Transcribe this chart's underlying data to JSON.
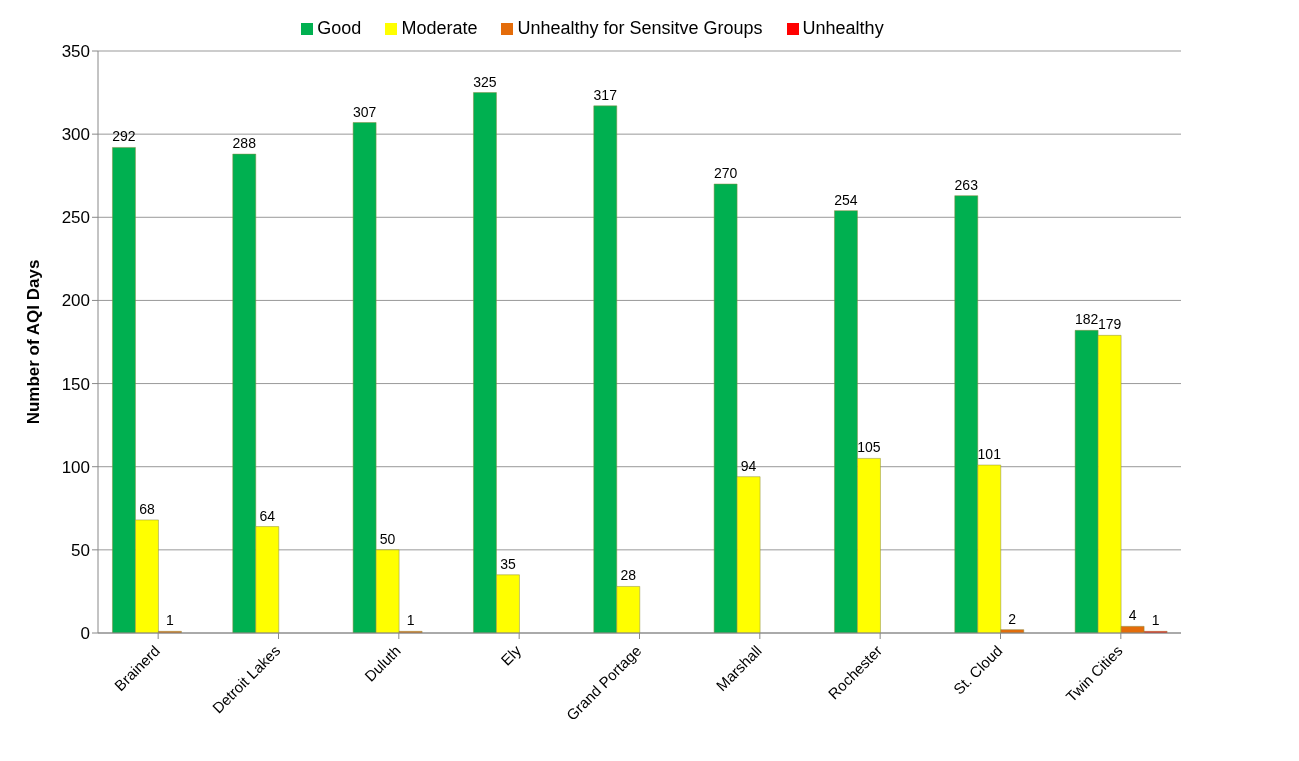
{
  "chart_data": {
    "type": "bar",
    "ylabel": "Number of AQI Days",
    "categories": [
      "Brainerd",
      "Detroit Lakes",
      "Duluth",
      "Ely",
      "Grand Portage",
      "Marshall",
      "Rochester",
      "St. Cloud",
      "Twin Cities"
    ],
    "series": [
      {
        "name": "Good",
        "color": "#00b050",
        "values": [
          292,
          288,
          307,
          325,
          317,
          270,
          254,
          263,
          182
        ],
        "value_labels": [
          "292",
          "288",
          "307",
          "325",
          "317",
          "270",
          "254",
          "263",
          "182"
        ]
      },
      {
        "name": "Moderate",
        "color": "#ffff00",
        "values": [
          68,
          64,
          50,
          35,
          28,
          94,
          105,
          101,
          179
        ],
        "value_labels": [
          "68",
          "64",
          "50",
          "35",
          "28",
          "94",
          "105",
          "101",
          "179"
        ]
      },
      {
        "name": "Unhealthy for Sensitve Groups",
        "color": "#e46c0a",
        "values": [
          1,
          0,
          1,
          0,
          0,
          0,
          0,
          2,
          4
        ],
        "value_labels": [
          "1",
          null,
          "1",
          null,
          null,
          null,
          null,
          "2",
          "4"
        ]
      },
      {
        "name": "Unhealthy",
        "color": "#ff0000",
        "values": [
          0,
          0,
          0,
          0,
          0,
          0,
          0,
          0,
          1
        ],
        "value_labels": [
          null,
          null,
          null,
          null,
          null,
          null,
          null,
          null,
          "1"
        ]
      }
    ],
    "ylim": [
      0,
      350
    ],
    "yticks": [
      0,
      50,
      100,
      150,
      200,
      250,
      300,
      350
    ],
    "grid": "y",
    "legend": "top"
  }
}
